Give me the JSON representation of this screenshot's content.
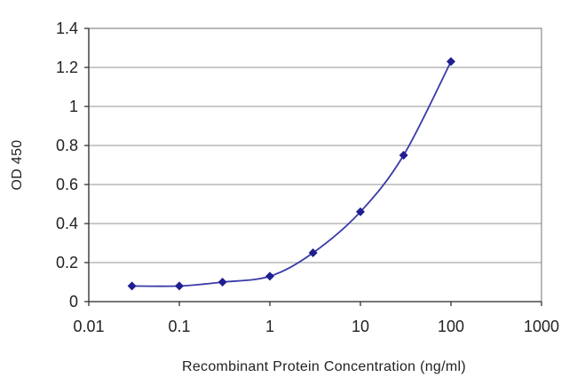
{
  "chart_data": {
    "type": "line",
    "xlabel": "Recombinant Protein Concentration (ng/ml)",
    "ylabel": "OD 450",
    "x_scale": "log",
    "xlim": [
      0.01,
      1000
    ],
    "ylim": [
      0,
      1.4
    ],
    "x_ticks": [
      "0.01",
      "0.1",
      "1",
      "10",
      "100",
      "1000"
    ],
    "y_ticks": [
      "0",
      "0.2",
      "0.4",
      "0.6",
      "0.8",
      "1",
      "1.2",
      "1.4"
    ],
    "grid": true,
    "series": [
      {
        "x": [
          0.03,
          0.1,
          0.3,
          1,
          3,
          10,
          30,
          100
        ],
        "y": [
          0.08,
          0.08,
          0.1,
          0.13,
          0.25,
          0.46,
          0.75,
          1.23
        ]
      }
    ],
    "colors": {
      "line": "#3a3aa8",
      "marker": "#1f1f8f"
    }
  }
}
